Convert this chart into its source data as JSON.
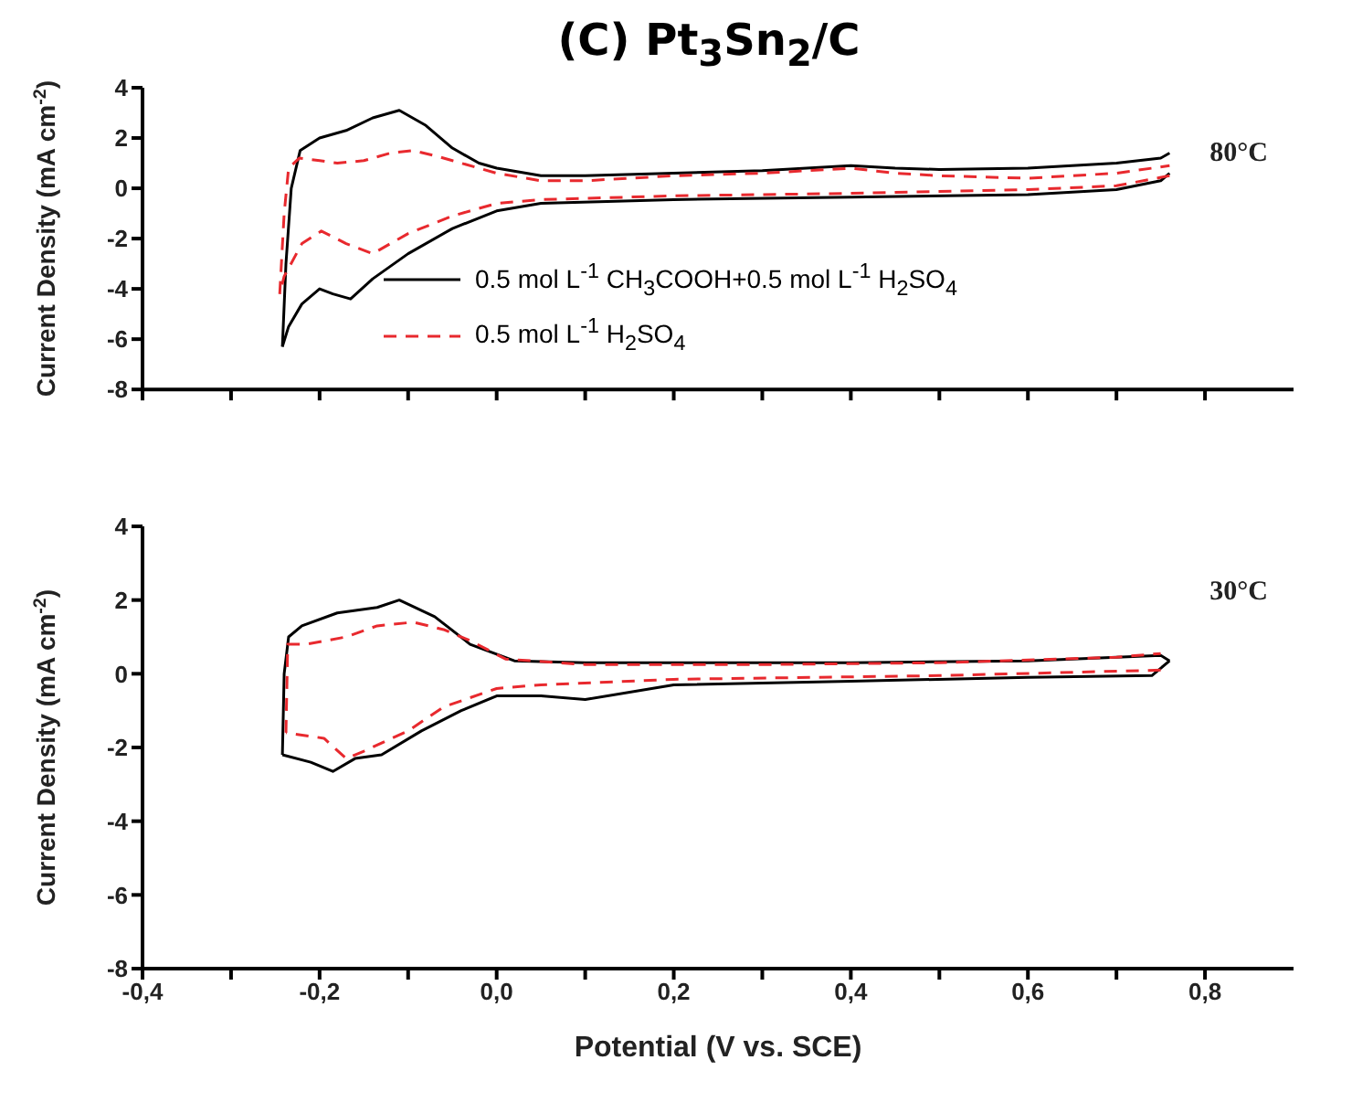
{
  "chart_data": [
    {
      "type": "line",
      "title": "(C) Pt$_{3}$Sn$_{2}$/C",
      "ylabel": "Current Density (mA cm$^{-2}$)",
      "annotations": [
        "80°C"
      ],
      "legend": "bottom",
      "tick_labels": "y",
      "marker": "none",
      "xlim": [
        -0.4,
        0.9
      ],
      "xticks": [
        {
          "value": -0.4,
          "label": null
        },
        {
          "value": -0.3,
          "label": null
        },
        {
          "value": -0.2,
          "label": null
        },
        {
          "value": -0.1,
          "label": null
        },
        {
          "value": 0,
          "label": null
        },
        {
          "value": 0.1,
          "label": null
        },
        {
          "value": 0.2,
          "label": null
        },
        {
          "value": 0.3,
          "label": null
        },
        {
          "value": 0.4,
          "label": null
        },
        {
          "value": 0.5,
          "label": null
        },
        {
          "value": 0.6,
          "label": null
        },
        {
          "value": 0.7,
          "label": null
        },
        {
          "value": 0.8,
          "label": null
        }
      ],
      "ylim": [
        -8,
        4
      ],
      "yticks": [
        -8,
        -6,
        -4,
        -2,
        0,
        2,
        4
      ],
      "series": [
        {
          "name": "0.5 mol L$^{-1}$ CH$_{3}$COOH+0.5 mol L$^{-1}$ H$_{2}$SO$_{4}$",
          "color": "#000000",
          "line_style": "solid",
          "x": [
            -0.242,
            -0.238,
            -0.232,
            -0.222,
            -0.2,
            -0.17,
            -0.14,
            -0.11,
            -0.08,
            -0.05,
            -0.02,
            0.0,
            0.05,
            0.1,
            0.2,
            0.3,
            0.4,
            0.45,
            0.5,
            0.6,
            0.7,
            0.75,
            0.76
          ],
          "values": [
            -6.3,
            -3.0,
            0.0,
            1.5,
            2.0,
            2.3,
            2.8,
            3.1,
            2.5,
            1.6,
            1.0,
            0.8,
            0.5,
            0.5,
            0.6,
            0.7,
            0.9,
            0.8,
            0.75,
            0.8,
            1.0,
            1.2,
            1.4
          ]
        },
        {
          "color": "#000000",
          "line_style": "solid",
          "x": [
            0.76,
            0.75,
            0.7,
            0.6,
            0.4,
            0.2,
            0.05,
            0.0,
            -0.05,
            -0.1,
            -0.14,
            -0.165,
            -0.185,
            -0.2,
            -0.22,
            -0.235,
            -0.242
          ],
          "values": [
            0.6,
            0.3,
            -0.05,
            -0.25,
            -0.35,
            -0.45,
            -0.6,
            -0.9,
            -1.6,
            -2.6,
            -3.6,
            -4.4,
            -4.2,
            -4.0,
            -4.6,
            -5.5,
            -6.3
          ]
        },
        {
          "name": "0.5 mol L$^{-1}$ H$_{2}$SO$_{4}$",
          "color": "#e8292e",
          "line_style": "dashed",
          "x": [
            -0.245,
            -0.24,
            -0.235,
            -0.223,
            -0.2,
            -0.18,
            -0.15,
            -0.12,
            -0.094,
            -0.07,
            -0.05,
            -0.02,
            0.0,
            0.05,
            0.1,
            0.2,
            0.3,
            0.4,
            0.45,
            0.5,
            0.6,
            0.7,
            0.76
          ],
          "values": [
            -4.2,
            -1.0,
            0.8,
            1.2,
            1.1,
            1.0,
            1.1,
            1.4,
            1.5,
            1.3,
            1.1,
            0.8,
            0.6,
            0.3,
            0.3,
            0.5,
            0.6,
            0.8,
            0.6,
            0.5,
            0.4,
            0.6,
            0.9
          ]
        },
        {
          "color": "#e8292e",
          "line_style": "dashed",
          "x": [
            0.76,
            0.7,
            0.6,
            0.4,
            0.2,
            0.05,
            0.0,
            -0.05,
            -0.1,
            -0.14,
            -0.17,
            -0.198,
            -0.22,
            -0.24,
            -0.245
          ],
          "values": [
            0.5,
            0.1,
            -0.05,
            -0.2,
            -0.3,
            -0.45,
            -0.6,
            -1.1,
            -1.8,
            -2.6,
            -2.2,
            -1.7,
            -2.2,
            -3.5,
            -4.2
          ]
        }
      ]
    },
    {
      "type": "line",
      "ylabel": "Current Density (mA cm$^{-2}$)",
      "xlabel": "Potential (V vs. SCE)",
      "annotations": [
        "30°C"
      ],
      "marker": "none",
      "xlim": [
        -0.4,
        0.9
      ],
      "xticks": [
        {
          "value": -0.4,
          "label": "-0,4"
        },
        {
          "value": -0.3,
          "label": null
        },
        {
          "value": -0.2,
          "label": "-0,2"
        },
        {
          "value": -0.1,
          "label": null
        },
        {
          "value": 0,
          "label": "0,0"
        },
        {
          "value": 0.1,
          "label": null
        },
        {
          "value": 0.2,
          "label": "0,2"
        },
        {
          "value": 0.3,
          "label": null
        },
        {
          "value": 0.4,
          "label": "0,4"
        },
        {
          "value": 0.5,
          "label": null
        },
        {
          "value": 0.6,
          "label": "0,6"
        },
        {
          "value": 0.7,
          "label": null
        },
        {
          "value": 0.8,
          "label": "0,8"
        }
      ],
      "ylim": [
        -8,
        4
      ],
      "yticks": [
        -8,
        -6,
        -4,
        -2,
        0,
        2,
        4
      ],
      "series": [
        {
          "color": "#000000",
          "line_style": "solid",
          "x": [
            -0.242,
            -0.24,
            -0.235,
            -0.22,
            -0.18,
            -0.135,
            -0.11,
            -0.07,
            -0.03,
            0.02,
            0.1,
            0.2,
            0.4,
            0.6,
            0.7,
            0.75,
            0.76
          ],
          "values": [
            -2.2,
            0.0,
            1.0,
            1.3,
            1.65,
            1.8,
            2.0,
            1.55,
            0.8,
            0.35,
            0.3,
            0.3,
            0.3,
            0.35,
            0.45,
            0.5,
            0.35
          ]
        },
        {
          "color": "#000000",
          "line_style": "solid",
          "x": [
            0.76,
            0.74,
            0.6,
            0.4,
            0.2,
            0.1,
            0.05,
            0.0,
            -0.04,
            -0.085,
            -0.13,
            -0.16,
            -0.185,
            -0.21,
            -0.242
          ],
          "values": [
            0.35,
            -0.05,
            -0.1,
            -0.2,
            -0.3,
            -0.7,
            -0.6,
            -0.6,
            -1.0,
            -1.55,
            -2.2,
            -2.3,
            -2.65,
            -2.4,
            -2.2
          ]
        },
        {
          "color": "#e8292e",
          "line_style": "dashed",
          "x": [
            -0.238,
            -0.236,
            -0.215,
            -0.17,
            -0.135,
            -0.094,
            -0.06,
            -0.03,
            0.01,
            0.1,
            0.3,
            0.5,
            0.7,
            0.75
          ],
          "values": [
            -1.6,
            0.8,
            0.8,
            1.0,
            1.3,
            1.4,
            1.2,
            0.9,
            0.4,
            0.25,
            0.25,
            0.3,
            0.45,
            0.55
          ]
        },
        {
          "color": "#e8292e",
          "line_style": "dashed",
          "x": [
            0.75,
            0.5,
            0.2,
            0.05,
            0.0,
            -0.06,
            -0.1,
            -0.15,
            -0.17,
            -0.195,
            -0.238
          ],
          "values": [
            0.1,
            -0.05,
            -0.15,
            -0.3,
            -0.4,
            -0.9,
            -1.55,
            -2.1,
            -2.3,
            -1.75,
            -1.6
          ]
        }
      ]
    }
  ]
}
